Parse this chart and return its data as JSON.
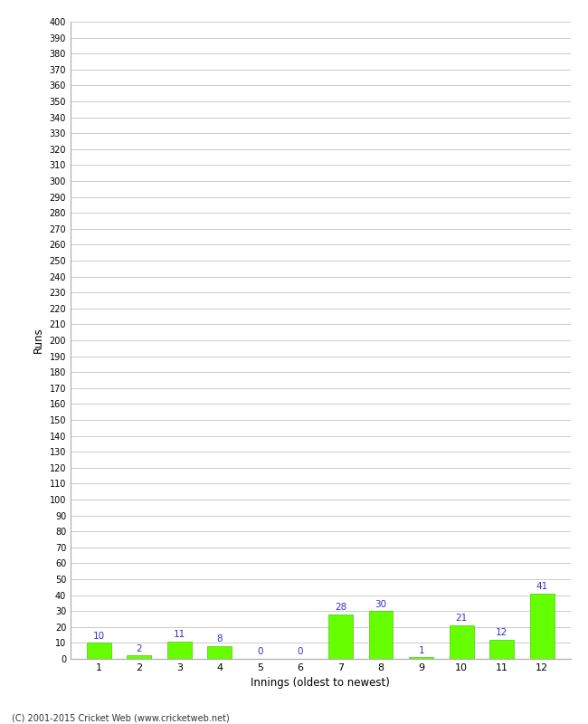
{
  "xlabel": "Innings (oldest to newest)",
  "ylabel": "Runs",
  "categories": [
    1,
    2,
    3,
    4,
    5,
    6,
    7,
    8,
    9,
    10,
    11,
    12
  ],
  "values": [
    10,
    2,
    11,
    8,
    0,
    0,
    28,
    30,
    1,
    21,
    12,
    41
  ],
  "bar_color": "#66ff00",
  "bar_edge_color": "#44cc00",
  "label_color": "#3333cc",
  "ylim": [
    0,
    400
  ],
  "background_color": "#ffffff",
  "grid_color": "#cccccc",
  "footer": "(C) 2001-2015 Cricket Web (www.cricketweb.net)"
}
